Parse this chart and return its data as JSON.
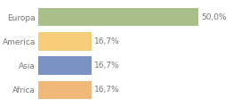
{
  "categories": [
    "Europa",
    "America",
    "Asia",
    "Africa"
  ],
  "values": [
    50.0,
    16.7,
    16.7,
    16.7
  ],
  "colors": [
    "#a8bf8a",
    "#f5cc7a",
    "#7b93c4",
    "#f0b97a"
  ],
  "bar_height": 0.75,
  "xlim": [
    0,
    65
  ],
  "background_color": "#ffffff",
  "text_color": "#777777",
  "fontsize": 6.5,
  "grid_color": "#e0e0e0"
}
